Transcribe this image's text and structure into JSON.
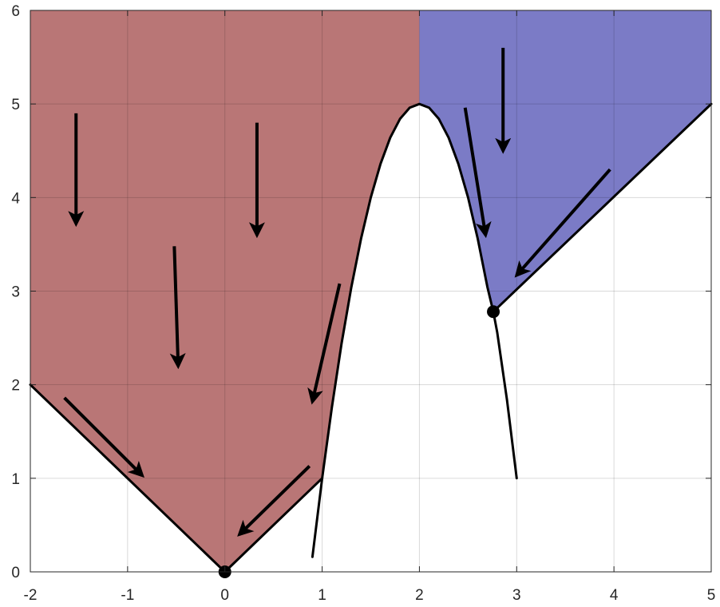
{
  "chart_data": {
    "type": "area",
    "title": "",
    "xlabel": "",
    "ylabel": "",
    "xlim": [
      -2,
      5
    ],
    "ylim": [
      0,
      6
    ],
    "x_ticks": [
      -2,
      -1,
      0,
      1,
      2,
      3,
      4,
      5
    ],
    "y_ticks": [
      0,
      1,
      2,
      3,
      4,
      5,
      6
    ],
    "x_tick_labels": [
      "-2",
      "-1",
      "0",
      "1",
      "2",
      "3",
      "4",
      "5"
    ],
    "y_tick_labels": [
      "0",
      "1",
      "2",
      "3",
      "4",
      "5",
      "6"
    ],
    "grid": true,
    "legend": "none",
    "regions": [
      {
        "color": "#b97676",
        "boundary": [
          [
            -2,
            2
          ],
          [
            0,
            0
          ],
          [
            1,
            1
          ],
          [
            1.1,
            1.76
          ],
          [
            1.2,
            2.44
          ],
          [
            1.3,
            3.04
          ],
          [
            1.4,
            3.56
          ],
          [
            1.5,
            4
          ],
          [
            1.6,
            4.36
          ],
          [
            1.7,
            4.64
          ],
          [
            1.8,
            4.84
          ],
          [
            1.9,
            4.96
          ],
          [
            2,
            5
          ]
        ],
        "top": 6
      },
      {
        "color": "#7b7bc6",
        "boundary": [
          [
            2,
            5
          ],
          [
            2.1,
            4.96
          ],
          [
            2.2,
            4.84
          ],
          [
            2.3,
            4.64
          ],
          [
            2.4,
            4.36
          ],
          [
            2.5,
            4
          ],
          [
            2.6,
            3.56
          ],
          [
            2.7,
            3.04
          ],
          [
            2.76,
            2.78
          ],
          [
            5,
            5
          ]
        ],
        "top": 6
      }
    ],
    "curves": [
      {
        "color": "#000000",
        "points": [
          [
            0.9,
            0.16
          ],
          [
            1,
            1
          ],
          [
            1.1,
            1.76
          ],
          [
            1.2,
            2.44
          ],
          [
            1.3,
            3.04
          ],
          [
            1.4,
            3.56
          ],
          [
            1.5,
            4
          ],
          [
            1.6,
            4.36
          ],
          [
            1.7,
            4.64
          ],
          [
            1.8,
            4.84
          ],
          [
            1.9,
            4.96
          ],
          [
            2,
            5
          ],
          [
            2.1,
            4.96
          ],
          [
            2.2,
            4.84
          ],
          [
            2.3,
            4.64
          ],
          [
            2.4,
            4.36
          ],
          [
            2.5,
            4
          ],
          [
            2.6,
            3.56
          ],
          [
            2.7,
            3.04
          ],
          [
            2.76,
            2.78
          ],
          [
            2.8,
            2.56
          ],
          [
            2.9,
            1.84
          ],
          [
            3,
            1
          ]
        ]
      },
      {
        "color": "#000000",
        "points": [
          [
            -2,
            2
          ],
          [
            0,
            0
          ],
          [
            1,
            1
          ]
        ]
      },
      {
        "color": "#000000",
        "points": [
          [
            2.76,
            2.78
          ],
          [
            5,
            5
          ]
        ]
      }
    ],
    "points": [
      {
        "x": 0,
        "y": 0
      },
      {
        "x": 2.76,
        "y": 2.78
      }
    ],
    "arrows": [
      {
        "from": [
          -1.53,
          4.9
        ],
        "to": [
          -1.53,
          3.72
        ]
      },
      {
        "from": [
          -0.52,
          3.48
        ],
        "to": [
          -0.48,
          2.2
        ]
      },
      {
        "from": [
          0.33,
          4.8
        ],
        "to": [
          0.33,
          3.6
        ]
      },
      {
        "from": [
          -1.65,
          1.86
        ],
        "to": [
          -0.85,
          1.03
        ]
      },
      {
        "from": [
          0.87,
          1.13
        ],
        "to": [
          0.15,
          0.4
        ]
      },
      {
        "from": [
          1.18,
          3.08
        ],
        "to": [
          0.9,
          1.82
        ]
      },
      {
        "from": [
          2.47,
          4.96
        ],
        "to": [
          2.68,
          3.6
        ]
      },
      {
        "from": [
          2.86,
          5.6
        ],
        "to": [
          2.86,
          4.5
        ]
      },
      {
        "from": [
          3.96,
          4.3
        ],
        "to": [
          3.0,
          3.17
        ]
      }
    ]
  }
}
